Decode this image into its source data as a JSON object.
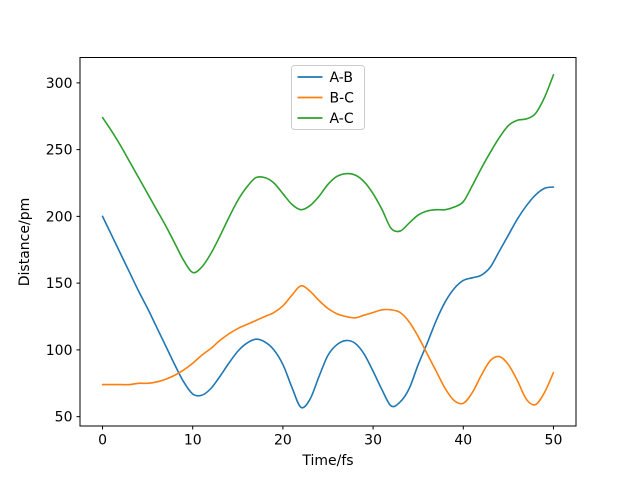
{
  "figure": {
    "background": "#ffffff",
    "frame_color": "#000000",
    "legend_border_color": "#cccccc"
  },
  "chart_data": {
    "type": "line",
    "title": "",
    "xlabel": "Time/fs",
    "ylabel": "Distance/pm",
    "xlim": [
      -2.5,
      52.5
    ],
    "ylim": [
      43,
      319
    ],
    "xticks": [
      0,
      10,
      20,
      30,
      40,
      50
    ],
    "yticks": [
      50,
      100,
      150,
      200,
      250,
      300
    ],
    "grid": false,
    "legend_position": "upper center",
    "x": [
      0,
      1,
      2,
      3,
      4,
      5,
      6,
      7,
      8,
      9,
      10,
      11,
      12,
      13,
      14,
      15,
      16,
      17,
      18,
      19,
      20,
      21,
      22,
      23,
      24,
      25,
      26,
      27,
      28,
      29,
      30,
      31,
      32,
      33,
      34,
      35,
      36,
      37,
      38,
      39,
      40,
      41,
      42,
      43,
      44,
      45,
      46,
      47,
      48,
      49,
      50
    ],
    "series": [
      {
        "name": "A-B",
        "color": "#1f77b4",
        "values": [
          200,
          186,
          172,
          158,
          144,
          131,
          117,
          103,
          89,
          76,
          67,
          66,
          71,
          80,
          90,
          99,
          105,
          108,
          106,
          100,
          89,
          72,
          57,
          63,
          80,
          96,
          104,
          107,
          105,
          97,
          84,
          70,
          58,
          61,
          71,
          89,
          105,
          122,
          136,
          146,
          152,
          154,
          156,
          162,
          174,
          186,
          198,
          208,
          216,
          221,
          222
        ]
      },
      {
        "name": "B-C",
        "color": "#ff7f0e",
        "values": [
          74,
          74,
          74,
          74,
          75,
          75,
          76,
          78,
          81,
          85,
          90,
          96,
          101,
          107,
          112,
          116,
          119,
          122,
          125,
          128,
          133,
          141,
          148,
          144,
          137,
          131,
          127,
          125,
          124,
          126,
          128,
          130,
          130,
          128,
          121,
          110,
          97,
          84,
          71,
          62,
          60,
          68,
          81,
          92,
          95,
          89,
          77,
          63,
          59,
          68,
          83
        ]
      },
      {
        "name": "A-C",
        "color": "#2ca02c",
        "values": [
          274,
          264,
          253,
          241,
          229,
          217,
          205,
          193,
          180,
          167,
          158,
          162,
          172,
          185,
          199,
          212,
          222,
          229,
          229,
          225,
          217,
          209,
          205,
          208,
          215,
          224,
          230,
          232,
          231,
          226,
          217,
          205,
          191,
          189,
          195,
          201,
          204,
          205,
          205,
          207,
          211,
          223,
          236,
          248,
          259,
          268,
          272,
          273,
          277,
          289,
          306
        ]
      }
    ]
  }
}
